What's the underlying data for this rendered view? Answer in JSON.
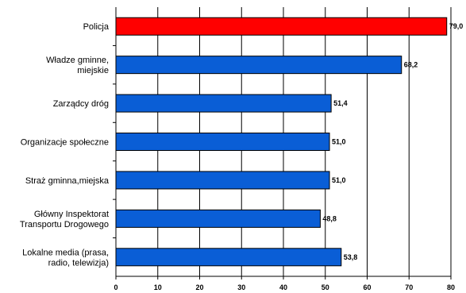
{
  "chart_data": {
    "type": "bar",
    "orientation": "horizontal",
    "categories": [
      [
        "Policja"
      ],
      [
        "Władze gminne,",
        "miejskie"
      ],
      [
        "Zarządcy dróg"
      ],
      [
        "Organizacje społeczne"
      ],
      [
        "Straż gminna,miejska"
      ],
      [
        "Główny Inspektorat",
        "Transportu Drogowego"
      ],
      [
        "Lokalne media (prasa,",
        "radio, telewizja)"
      ]
    ],
    "values": [
      79.0,
      68.2,
      51.4,
      51.0,
      51.0,
      48.8,
      53.8
    ],
    "value_labels": [
      "79,0",
      "68,2",
      "51,4",
      "51,0",
      "51,0",
      "48,8",
      "53,8"
    ],
    "highlight_index": 0,
    "xlim": [
      0,
      80
    ],
    "xticks": [
      0,
      10,
      20,
      30,
      40,
      50,
      60,
      70,
      80
    ],
    "grid": "vertical",
    "legend": "none",
    "title": "",
    "xlabel": "",
    "ylabel": "",
    "colors": {
      "bar": "#0a5ed6",
      "highlight": "#ff0000",
      "bar_edge": "#000000",
      "grid": "#000000",
      "axis": "#000000"
    }
  }
}
